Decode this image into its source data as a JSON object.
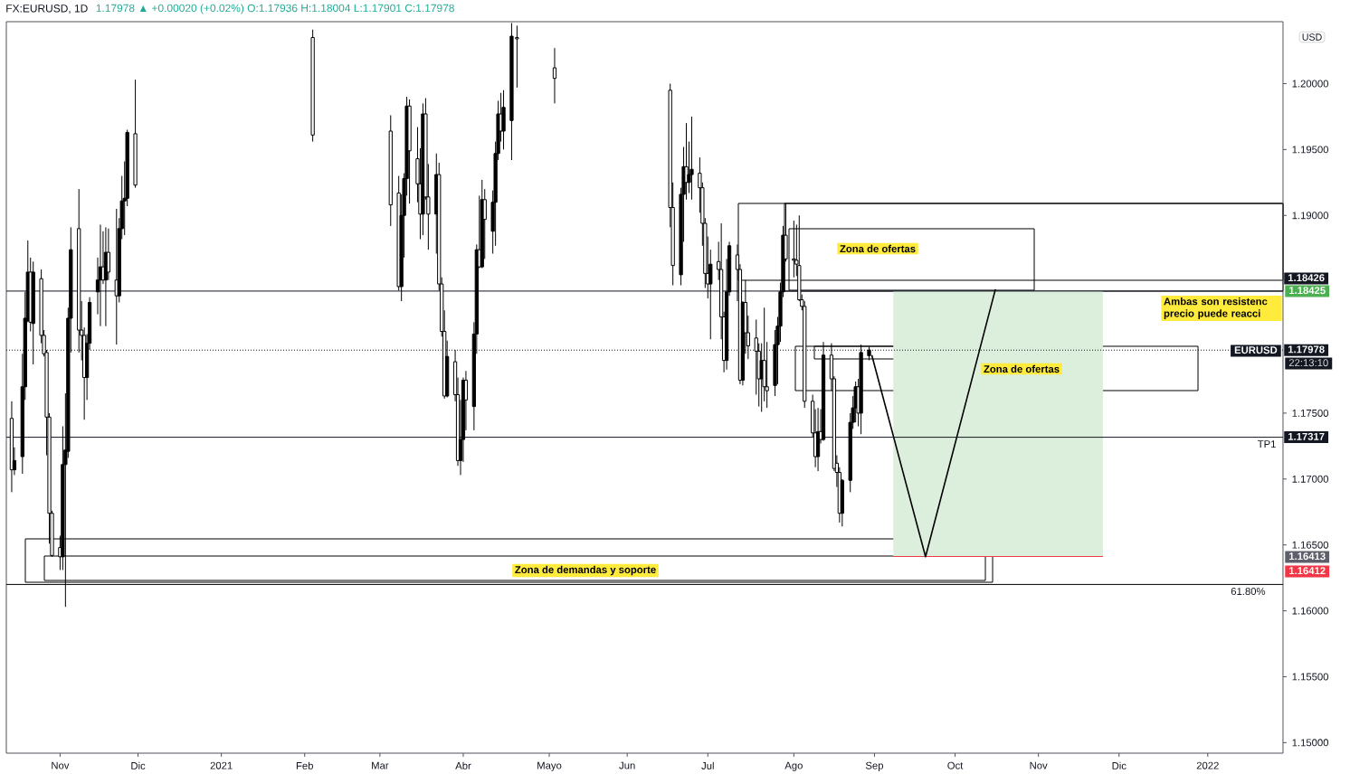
{
  "chart_data": {
    "type": "candlestick",
    "title": "FX:EURUSD, 1D",
    "subtitle": "1.17978 ▲ +0.00020 (+0.02%) O:1.17936 H:1.18004 L:1.17901 C:1.17978",
    "color": "#000000",
    "x": [
      "2020-10-15",
      "2020-10-16",
      "2020-10-19",
      "2020-10-20",
      "2020-10-21",
      "2020-10-22",
      "2020-10-23",
      "2020-10-26",
      "2020-10-27",
      "2020-10-28",
      "2020-10-29",
      "2020-10-30",
      "2020-11-02",
      "2020-11-03",
      "2020-11-04",
      "2020-11-05",
      "2020-11-06",
      "2020-11-09",
      "2020-11-10",
      "2020-11-11",
      "2020-11-12",
      "2020-11-13",
      "2020-11-16",
      "2020-11-17",
      "2020-11-18",
      "2020-11-19",
      "2020-11-20",
      "2020-11-23",
      "2020-11-24",
      "2020-11-25",
      "2020-11-26",
      "2020-11-27",
      "2020-11-30",
      "2021-02-04",
      "2021-03-05",
      "2021-03-08",
      "2021-03-09",
      "2021-03-10",
      "2021-03-11",
      "2021-03-12",
      "2021-03-15",
      "2021-03-16",
      "2021-03-17",
      "2021-03-18",
      "2021-03-19",
      "2021-03-22",
      "2021-03-23",
      "2021-03-24",
      "2021-03-25",
      "2021-03-26",
      "2021-03-29",
      "2021-03-30",
      "2021-03-31",
      "2021-04-01",
      "2021-04-02",
      "2021-04-05",
      "2021-04-06",
      "2021-04-07",
      "2021-04-08",
      "2021-04-09",
      "2021-04-12",
      "2021-04-13",
      "2021-04-14",
      "2021-04-15",
      "2021-04-16",
      "2021-04-19",
      "2021-04-21",
      "2021-05-05",
      "2021-06-17",
      "2021-06-18",
      "2021-06-21",
      "2021-06-22",
      "2021-06-23",
      "2021-06-24",
      "2021-06-25",
      "2021-06-28",
      "2021-06-29",
      "2021-06-30",
      "2021-07-01",
      "2021-07-02",
      "2021-07-05",
      "2021-07-06",
      "2021-07-07",
      "2021-07-08",
      "2021-07-09",
      "2021-07-12",
      "2021-07-13",
      "2021-07-14",
      "2021-07-15",
      "2021-07-16",
      "2021-07-19",
      "2021-07-20",
      "2021-07-21",
      "2021-07-22",
      "2021-07-23",
      "2021-07-26",
      "2021-07-27",
      "2021-07-28",
      "2021-07-29",
      "2021-07-30",
      "2021-08-02",
      "2021-08-03",
      "2021-08-04",
      "2021-08-05",
      "2021-08-06",
      "2021-08-09",
      "2021-08-10",
      "2021-08-11",
      "2021-08-12",
      "2021-08-13",
      "2021-08-16",
      "2021-08-17",
      "2021-08-18",
      "2021-08-19",
      "2021-08-20",
      "2021-08-23",
      "2021-08-24",
      "2021-08-25",
      "2021-08-26",
      "2021-08-27",
      "2021-08-30"
    ],
    "ohlc": [
      [
        1.1746,
        1.1759,
        1.169,
        1.1707
      ],
      [
        1.1707,
        1.1724,
        1.1703,
        1.1714
      ],
      [
        1.1717,
        1.1795,
        1.1704,
        1.177
      ],
      [
        1.177,
        1.1842,
        1.176,
        1.1822
      ],
      [
        1.182,
        1.1881,
        1.1819,
        1.1857
      ],
      [
        1.1857,
        1.1868,
        1.1812,
        1.1819
      ],
      [
        1.1818,
        1.1865,
        1.1787,
        1.1857
      ],
      [
        1.1852,
        1.1859,
        1.1803,
        1.1809
      ],
      [
        1.1809,
        1.1813,
        1.1793,
        1.1795
      ],
      [
        1.1796,
        1.1798,
        1.1718,
        1.1747
      ],
      [
        1.1747,
        1.175,
        1.1651,
        1.1674
      ],
      [
        1.1674,
        1.1676,
        1.1641,
        1.1642
      ],
      [
        1.1648,
        1.1657,
        1.1631,
        1.1641
      ],
      [
        1.1641,
        1.174,
        1.1631,
        1.1711
      ],
      [
        1.1711,
        1.1765,
        1.1603,
        1.1722
      ],
      [
        1.1721,
        1.183,
        1.1716,
        1.1822
      ],
      [
        1.1822,
        1.1891,
        1.1796,
        1.1874
      ],
      [
        1.189,
        1.192,
        1.1796,
        1.1813
      ],
      [
        1.1813,
        1.1835,
        1.179,
        1.1809
      ],
      [
        1.1809,
        1.1815,
        1.1745,
        1.1777
      ],
      [
        1.1777,
        1.181,
        1.176,
        1.1803
      ],
      [
        1.1803,
        1.1838,
        1.1798,
        1.1834
      ],
      [
        1.1842,
        1.1868,
        1.1825,
        1.1851
      ],
      [
        1.1851,
        1.1893,
        1.1816,
        1.1861
      ],
      [
        1.1861,
        1.1888,
        1.1848,
        1.1851
      ],
      [
        1.1851,
        1.1891,
        1.1816,
        1.1872
      ],
      [
        1.1872,
        1.189,
        1.1851,
        1.1857
      ],
      [
        1.1851,
        1.1905,
        1.1802,
        1.1839
      ],
      [
        1.1839,
        1.1898,
        1.1834,
        1.189
      ],
      [
        1.189,
        1.193,
        1.1882,
        1.1911
      ],
      [
        1.1911,
        1.1941,
        1.1885,
        1.1913
      ],
      [
        1.1913,
        1.1965,
        1.1907,
        1.1963
      ],
      [
        1.1962,
        1.2003,
        1.1921,
        1.1923
      ],
      [
        1.2035,
        1.2041,
        1.1956,
        1.1961
      ],
      [
        1.1964,
        1.1976,
        1.1892,
        1.1908
      ],
      [
        1.1917,
        1.193,
        1.1843,
        1.1846
      ],
      [
        1.1846,
        1.1916,
        1.1835,
        1.19
      ],
      [
        1.19,
        1.1932,
        1.1868,
        1.1928
      ],
      [
        1.1928,
        1.199,
        1.1915,
        1.1983
      ],
      [
        1.1983,
        1.1988,
        1.1909,
        1.1949
      ],
      [
        1.1943,
        1.1967,
        1.191,
        1.1924
      ],
      [
        1.1924,
        1.1951,
        1.1882,
        1.1901
      ],
      [
        1.1901,
        1.1985,
        1.1885,
        1.1977
      ],
      [
        1.1977,
        1.1989,
        1.1912,
        1.1914
      ],
      [
        1.1914,
        1.1939,
        1.1874,
        1.1901
      ],
      [
        1.1901,
        1.1947,
        1.1871,
        1.1931
      ],
      [
        1.1931,
        1.194,
        1.1843,
        1.1848
      ],
      [
        1.1848,
        1.1853,
        1.1808,
        1.1812
      ],
      [
        1.1812,
        1.1828,
        1.1761,
        1.1763
      ],
      [
        1.1763,
        1.1805,
        1.1762,
        1.1793
      ],
      [
        1.1789,
        1.1798,
        1.1759,
        1.1764
      ],
      [
        1.1764,
        1.1777,
        1.171,
        1.1714
      ],
      [
        1.1714,
        1.176,
        1.1703,
        1.173
      ],
      [
        1.173,
        1.1777,
        1.1713,
        1.1775
      ],
      [
        1.1775,
        1.1782,
        1.1737,
        1.176
      ],
      [
        1.1755,
        1.1819,
        1.1737,
        1.181
      ],
      [
        1.181,
        1.1878,
        1.1795,
        1.1874
      ],
      [
        1.1874,
        1.1915,
        1.186,
        1.1861
      ],
      [
        1.1861,
        1.1927,
        1.186,
        1.1912
      ],
      [
        1.1912,
        1.192,
        1.1867,
        1.1897
      ],
      [
        1.1888,
        1.1919,
        1.1871,
        1.191
      ],
      [
        1.191,
        1.1956,
        1.1877,
        1.1947
      ],
      [
        1.1947,
        1.1987,
        1.1942,
        1.1977
      ],
      [
        1.1977,
        1.1993,
        1.1956,
        1.1964
      ],
      [
        1.1964,
        1.1995,
        1.195,
        1.1982
      ],
      [
        1.1972,
        1.2046,
        1.1942,
        1.2036
      ],
      [
        1.2035,
        1.2044,
        1.1997,
        1.2034
      ],
      [
        1.2012,
        1.2027,
        1.1985,
        1.2004
      ],
      [
        1.1995,
        1.2,
        1.1891,
        1.1906
      ],
      [
        1.1906,
        1.1925,
        1.1847,
        1.1862
      ],
      [
        1.1855,
        1.1921,
        1.1847,
        1.1916
      ],
      [
        1.1916,
        1.1952,
        1.188,
        1.1937
      ],
      [
        1.1937,
        1.197,
        1.1912,
        1.1925
      ],
      [
        1.1925,
        1.1956,
        1.1917,
        1.1931
      ],
      [
        1.1931,
        1.1975,
        1.1912,
        1.1935
      ],
      [
        1.1932,
        1.1944,
        1.1902,
        1.1921
      ],
      [
        1.1921,
        1.1925,
        1.1877,
        1.1894
      ],
      [
        1.1894,
        1.1898,
        1.1845,
        1.1856
      ],
      [
        1.1856,
        1.1884,
        1.1837,
        1.1848
      ],
      [
        1.1848,
        1.1874,
        1.1806,
        1.1863
      ],
      [
        1.1865,
        1.188,
        1.1851,
        1.1859
      ],
      [
        1.1859,
        1.1894,
        1.1806,
        1.1823
      ],
      [
        1.1823,
        1.1827,
        1.1781,
        1.179
      ],
      [
        1.179,
        1.1867,
        1.1783,
        1.1842
      ],
      [
        1.1842,
        1.188,
        1.1839,
        1.1877
      ],
      [
        1.187,
        1.1878,
        1.1835,
        1.1859
      ],
      [
        1.1859,
        1.1863,
        1.1772,
        1.1775
      ],
      [
        1.1775,
        1.1835,
        1.1771,
        1.1834
      ],
      [
        1.1834,
        1.1851,
        1.1795,
        1.1811
      ],
      [
        1.1811,
        1.1824,
        1.1791,
        1.1801
      ],
      [
        1.1807,
        1.1821,
        1.1764,
        1.1797
      ],
      [
        1.1797,
        1.1803,
        1.1755,
        1.1776
      ],
      [
        1.1776,
        1.1803,
        1.1751,
        1.179
      ],
      [
        1.179,
        1.183,
        1.1759,
        1.177
      ],
      [
        1.177,
        1.1804,
        1.1754,
        1.1767
      ],
      [
        1.1771,
        1.1813,
        1.1763,
        1.1802
      ],
      [
        1.1802,
        1.1823,
        1.1772,
        1.1816
      ],
      [
        1.1816,
        1.1849,
        1.1804,
        1.1842
      ],
      [
        1.1842,
        1.1892,
        1.1838,
        1.1885
      ],
      [
        1.1885,
        1.1909,
        1.1865,
        1.1867
      ],
      [
        1.1867,
        1.1896,
        1.1853,
        1.1866
      ],
      [
        1.1866,
        1.1893,
        1.1854,
        1.1863
      ],
      [
        1.1862,
        1.19,
        1.1835,
        1.1836
      ],
      [
        1.1836,
        1.184,
        1.1828,
        1.1831
      ],
      [
        1.1831,
        1.1835,
        1.1754,
        1.1759
      ],
      [
        1.1759,
        1.1764,
        1.1732,
        1.1735
      ],
      [
        1.1735,
        1.1753,
        1.1709,
        1.1717
      ],
      [
        1.1717,
        1.1754,
        1.1706,
        1.1736
      ],
      [
        1.1736,
        1.1753,
        1.1727,
        1.173
      ],
      [
        1.173,
        1.1804,
        1.1729,
        1.1794
      ],
      [
        1.1794,
        1.1803,
        1.1767,
        1.1776
      ],
      [
        1.1776,
        1.1778,
        1.1706,
        1.1708
      ],
      [
        1.1712,
        1.1718,
        1.1694,
        1.1705
      ],
      [
        1.1705,
        1.1709,
        1.1667,
        1.1674
      ],
      [
        1.1674,
        1.17,
        1.1664,
        1.1699
      ],
      [
        1.1699,
        1.175,
        1.169,
        1.1743
      ],
      [
        1.1743,
        1.1763,
        1.1738,
        1.1754
      ],
      [
        1.1754,
        1.1774,
        1.1743,
        1.177
      ],
      [
        1.177,
        1.1776,
        1.174,
        1.175
      ],
      [
        1.175,
        1.1802,
        1.1734,
        1.1796
      ],
      [
        1.17936,
        1.18004,
        1.17901,
        1.17978
      ]
    ],
    "xlim": [
      "2020-10-13",
      "2022-01-31"
    ],
    "ylim": [
      1.1492,
      1.2047
    ],
    "xticks": [
      {
        "value": "2020-11-02",
        "label": "Nov"
      },
      {
        "value": "2020-12-01",
        "label": "Dic"
      },
      {
        "value": "2021-01-01",
        "label": "2021"
      },
      {
        "value": "2021-02-01",
        "label": "Feb"
      },
      {
        "value": "2021-03-01",
        "label": "Mar"
      },
      {
        "value": "2021-04-01",
        "label": "Abr"
      },
      {
        "value": "2021-05-03",
        "label": "Mayo"
      },
      {
        "value": "2021-06-01",
        "label": "Jun"
      },
      {
        "value": "2021-07-01",
        "label": "Jul"
      },
      {
        "value": "2021-08-02",
        "label": "Ago"
      },
      {
        "value": "2021-09-01",
        "label": "Sep"
      },
      {
        "value": "2021-10-01",
        "label": "Oct"
      },
      {
        "value": "2021-11-01",
        "label": "Nov"
      },
      {
        "value": "2021-12-01",
        "label": "Dic"
      },
      {
        "value": "2022-01-03",
        "label": "2022"
      }
    ],
    "yticks": [
      {
        "value": 1.15,
        "label": "1.15000"
      },
      {
        "value": 1.155,
        "label": "1.15500"
      },
      {
        "value": 1.16,
        "label": "1.16000"
      },
      {
        "value": 1.165,
        "label": "1.16500"
      },
      {
        "value": 1.17,
        "label": "1.17000"
      },
      {
        "value": 1.175,
        "label": "1.17500"
      },
      {
        "value": 1.19,
        "label": "1.19000"
      },
      {
        "value": 1.195,
        "label": "1.19500"
      },
      {
        "value": 1.2,
        "label": "1.20000"
      }
    ],
    "series": [
      {
        "type": "line",
        "x": [
          "2021-09-08",
          "2021-11-25"
        ],
        "values": [
          1.16412,
          1.16412
        ],
        "lower": [
          1.16413,
          1.16413
        ],
        "upper": [
          1.18425,
          1.18425
        ],
        "color": "#f23645"
      },
      {
        "type": "line",
        "x": [
          "2021-08-31",
          "2021-09-20",
          "2021-10-16"
        ],
        "values": [
          1.1794,
          1.1641,
          1.1844
        ],
        "color": "#000000"
      }
    ],
    "ref_lines": [
      {
        "axis": "y",
        "value": 1.18426,
        "label": "1.18426",
        "color": "#131722"
      },
      {
        "axis": "y",
        "value": 1.17978,
        "label": "1.17978",
        "color": "#131722",
        "line_style": "dotted"
      },
      {
        "axis": "y",
        "value": 1.17317,
        "label": "1.17317",
        "color": "#131722"
      },
      {
        "axis": "y",
        "value": 1.162
      }
    ],
    "annotations": [
      "USD",
      "Zona de ofertas",
      "Zona de ofertas",
      "Zona de demandas y soporte",
      "Ambas son resistenc precio puede reacci",
      "EURUSD",
      "22:13:10",
      "1.18425",
      "1.16413",
      "1.16412",
      {
        "text": "TP1",
        "x": "2022-01-29",
        "y": 1.17317
      },
      {
        "text": "61.80%",
        "x": "2022-01-25",
        "y": 1.162
      }
    ]
  }
}
